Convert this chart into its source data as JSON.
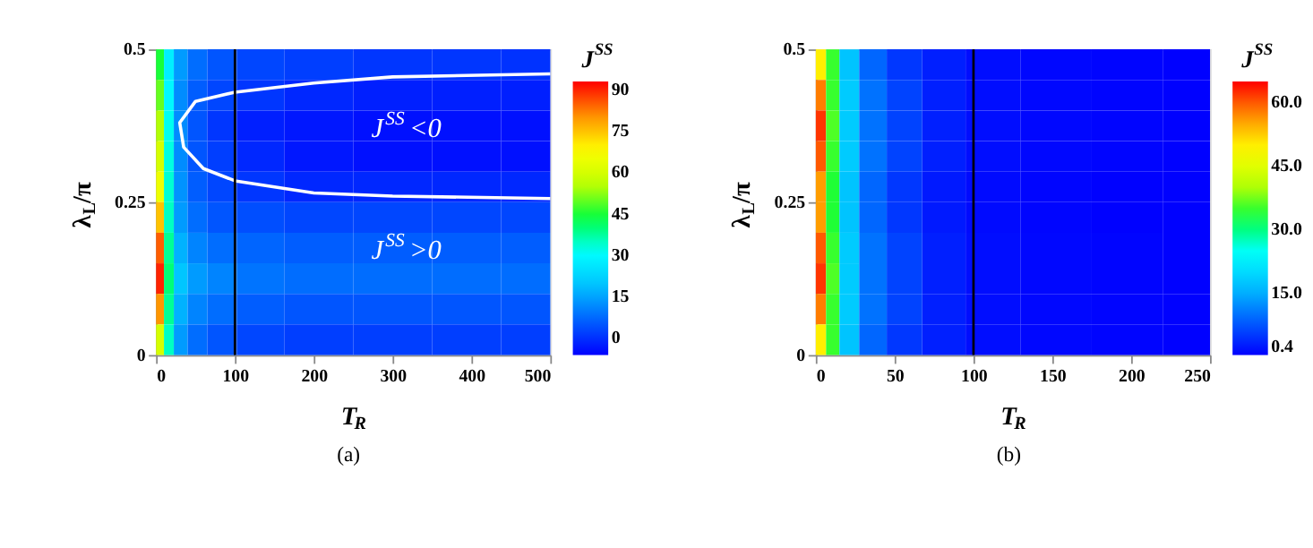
{
  "chart_data": [
    {
      "type": "heatmap",
      "xlabel": "T$_{R}$",
      "ylabel": "λ$_{L}$/π",
      "clabel": "J$^{SS}$",
      "x": [
        5,
        15,
        30,
        50,
        80,
        125,
        200,
        300,
        400,
        475
      ],
      "cells": [
        [
          45,
          28,
          14,
          8,
          5,
          3,
          2,
          1,
          1,
          0.5
        ],
        [
          50,
          30,
          12,
          6,
          3,
          1,
          -1,
          -2,
          -2,
          -2
        ],
        [
          55,
          32,
          12,
          5,
          1,
          -2,
          -3,
          -4,
          -4,
          -4
        ],
        [
          60,
          33,
          12,
          5,
          2,
          -1,
          -3,
          -4,
          -4,
          -4
        ],
        [
          65,
          34,
          13,
          6,
          3,
          1,
          -1,
          -1,
          -1,
          -1
        ],
        [
          75,
          35,
          14,
          8,
          5,
          4,
          3,
          3,
          3,
          3
        ],
        [
          85,
          38,
          17,
          11,
          8,
          7,
          6,
          6,
          6,
          6
        ],
        [
          90,
          40,
          20,
          14,
          11,
          9,
          8,
          8,
          8,
          8
        ],
        [
          80,
          38,
          17,
          11,
          8,
          6,
          5,
          5,
          5,
          5
        ],
        [
          60,
          35,
          14,
          8,
          5,
          3,
          2,
          2,
          2,
          2
        ]
      ],
      "xlim": [
        0,
        500
      ],
      "xticks": [
        0,
        100,
        200,
        300,
        400,
        500
      ],
      "ylim": [
        0,
        0.5
      ],
      "yticks": [
        0,
        0.25,
        0.5
      ],
      "clim": [
        -6,
        93
      ],
      "cticks": [
        0,
        15,
        30,
        45,
        60,
        75,
        90
      ],
      "series": [
        {
          "type": "line",
          "color": "#ffffff",
          "x": [
            500,
            300,
            200,
            100,
            50,
            30,
            35,
            60,
            100,
            200,
            300,
            500
          ],
          "values": [
            0.46,
            0.455,
            0.445,
            0.43,
            0.415,
            0.38,
            0.34,
            0.305,
            0.285,
            0.265,
            0.26,
            0.256
          ]
        }
      ],
      "ref_lines": [
        {
          "axis": "x",
          "value": 100,
          "color": "#000000"
        }
      ],
      "annotations": [
        "J$^{SS}$<0",
        "J$^{SS}$>0",
        "(a)"
      ]
    },
    {
      "type": "heatmap",
      "xlabel": "T$_{R}$",
      "ylabel": "λ$_{L}$/π",
      "clabel": "J$^{SS}$",
      "x": [
        3,
        10,
        20,
        35,
        55,
        80,
        110,
        150,
        200,
        240
      ],
      "cells": [
        [
          50,
          35,
          17,
          9,
          5,
          3,
          1.5,
          1,
          0.7,
          0.5
        ],
        [
          58,
          35,
          18,
          10,
          6,
          3,
          1.5,
          1,
          0.7,
          0.5
        ],
        [
          62,
          36,
          18,
          10,
          6,
          3,
          1.5,
          1,
          0.7,
          0.5
        ],
        [
          60,
          35,
          18,
          10,
          6,
          3,
          1.5,
          1,
          0.7,
          0.5
        ],
        [
          56,
          34,
          17,
          9,
          5,
          2.5,
          1.2,
          0.8,
          0.5,
          0.5
        ],
        [
          56,
          34,
          17,
          9,
          5,
          2.5,
          1.2,
          0.8,
          0.5,
          0.5
        ],
        [
          60,
          35,
          18,
          10,
          6,
          3,
          1.5,
          1,
          0.7,
          0.5
        ],
        [
          62,
          36,
          18,
          10,
          6,
          3,
          1.5,
          1,
          0.7,
          0.5
        ],
        [
          58,
          35,
          18,
          10,
          6,
          3,
          1.5,
          1,
          0.7,
          0.5
        ],
        [
          50,
          35,
          17,
          9,
          5,
          3,
          1.5,
          1,
          0.7,
          0.5
        ]
      ],
      "xlim": [
        0,
        250
      ],
      "xticks": [
        0,
        50,
        100,
        150,
        200,
        250
      ],
      "ylim": [
        0,
        0.5
      ],
      "yticks": [
        0,
        0.25,
        0.5
      ],
      "clim": [
        0.4,
        65
      ],
      "cticks": [
        {
          "value": 0.4,
          "label": "0.4"
        },
        {
          "value": 15,
          "label": "15.0"
        },
        {
          "value": 30,
          "label": "30.0"
        },
        {
          "value": 45,
          "label": "45.0"
        },
        {
          "value": 60,
          "label": "60.0"
        }
      ],
      "ref_lines": [
        {
          "axis": "x",
          "value": 100,
          "color": "#000000"
        }
      ],
      "annotations": [
        "(b)"
      ]
    }
  ]
}
